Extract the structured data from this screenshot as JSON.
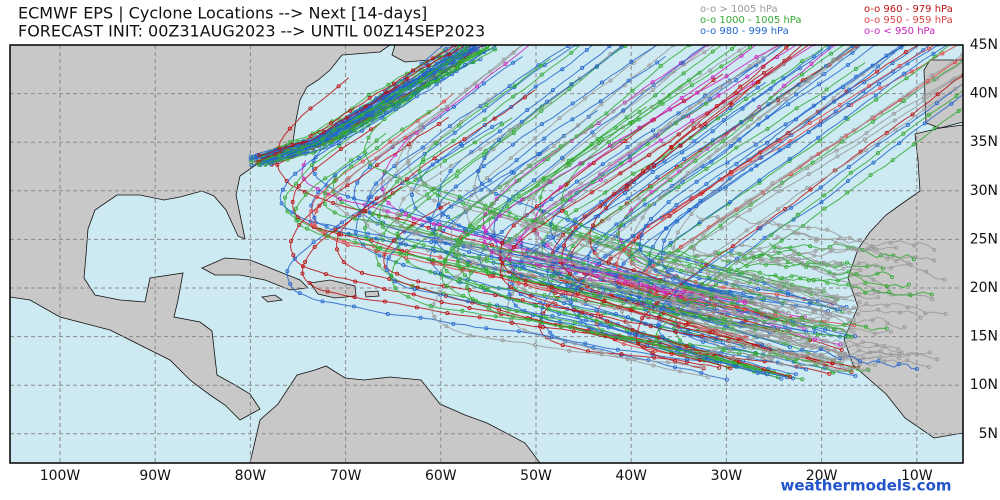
{
  "header": {
    "title": "ECMWF EPS | Cyclone Locations --> Next [14-days]",
    "subtitle": "FORECAST INIT: 00Z31AUG2023 --> UNTIL 00Z14SEP2023"
  },
  "legend": [
    {
      "label": "o-o > 1005 hPa",
      "color": "#999999"
    },
    {
      "label": "o-o 1000 - 1005 hPa",
      "color": "#33aa33"
    },
    {
      "label": "o-o 980 - 999 hPa",
      "color": "#2266cc"
    },
    {
      "label": "o-o 960 - 979 hPa",
      "color": "#bb1111"
    },
    {
      "label": "o-o 950 - 959 hPa",
      "color": "#dd4444"
    },
    {
      "label": "o-o < 950 hPa",
      "color": "#cc22bb"
    }
  ],
  "longitude_labels": [
    "100W",
    "90W",
    "80W",
    "70W",
    "60W",
    "50W",
    "40W",
    "30W",
    "20W",
    "10W"
  ],
  "latitude_labels": [
    "45N",
    "40N",
    "35N",
    "30N",
    "25N",
    "20N",
    "15N",
    "10N",
    "5N"
  ],
  "watermark": "weathermodels.com"
}
